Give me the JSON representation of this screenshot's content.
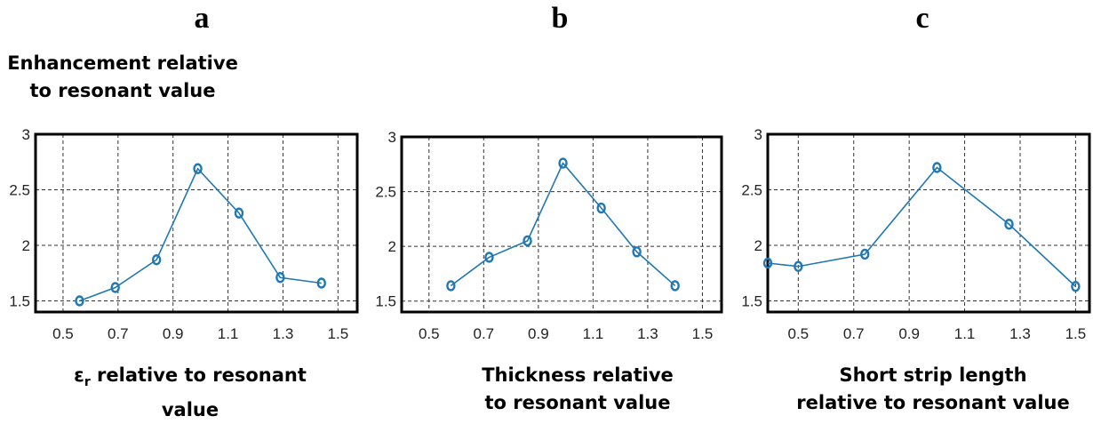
{
  "chart_data": [
    {
      "type": "line",
      "panel_label": "a",
      "ylabel_lines": [
        "Enhancement relative",
        "to resonant value"
      ],
      "xlabel_lines": [
        "ε",
        "r",
        " relative to resonant",
        "value"
      ],
      "xticks": [
        "0.5",
        "0.7",
        "0.9",
        "1.1",
        "1.3",
        "1.5"
      ],
      "yticks": [
        "1.5",
        "2",
        "2.5",
        "3"
      ],
      "xlim": [
        0.4,
        1.57
      ],
      "ylim": [
        1.4,
        3.0
      ],
      "grid": true,
      "color": "#1f77b4",
      "series": [
        {
          "x": [
            0.56,
            0.69,
            0.84,
            0.99,
            1.14,
            1.29,
            1.44
          ],
          "y": [
            1.5,
            1.62,
            1.87,
            2.69,
            2.29,
            1.71,
            1.66
          ]
        }
      ]
    },
    {
      "type": "line",
      "panel_label": "b",
      "xlabel_lines": [
        "Thickness relative",
        "to resonant value"
      ],
      "xticks": [
        "0.5",
        "0.7",
        "0.9",
        "1.1",
        "1.3",
        "1.5"
      ],
      "yticks": [
        "1.5",
        "2",
        "2.5",
        "3"
      ],
      "xlim": [
        0.4,
        1.57
      ],
      "ylim": [
        1.4,
        3.0
      ],
      "grid": true,
      "color": "#1f77b4",
      "series": [
        {
          "x": [
            0.58,
            0.72,
            0.86,
            0.99,
            1.13,
            1.26,
            1.4
          ],
          "y": [
            1.64,
            1.9,
            2.05,
            2.76,
            2.35,
            1.95,
            1.64
          ]
        }
      ]
    },
    {
      "type": "line",
      "panel_label": "c",
      "xlabel_lines": [
        "Short strip length",
        "relative to resonant value"
      ],
      "xticks": [
        "0.5",
        "0.7",
        "0.9",
        "1.1",
        "1.3",
        "1.5"
      ],
      "yticks": [
        "1.5",
        "2",
        "2.5",
        "3"
      ],
      "xlim": [
        0.39,
        1.55
      ],
      "ylim": [
        1.4,
        3.0
      ],
      "grid": true,
      "color": "#1f77b4",
      "series": [
        {
          "x": [
            0.39,
            0.5,
            0.74,
            1.0,
            1.26,
            1.5
          ],
          "y": [
            1.84,
            1.81,
            1.92,
            2.7,
            2.19,
            1.63
          ]
        }
      ]
    }
  ]
}
